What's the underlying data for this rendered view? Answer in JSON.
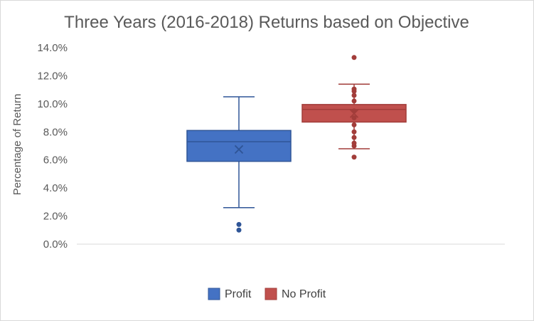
{
  "chart_data": {
    "type": "box",
    "title": "Three Years (2016-2018) Returns based on Objective",
    "ylabel": "Percentage of Return",
    "xlabel": "",
    "ylim": [
      0,
      14
    ],
    "y_ticks": [
      "0.0%",
      "2.0%",
      "4.0%",
      "6.0%",
      "8.0%",
      "10.0%",
      "12.0%",
      "14.0%"
    ],
    "grid": false,
    "legend_position": "bottom",
    "series": [
      {
        "name": "Profit",
        "color": "#4472c4",
        "border": "#2f5597",
        "whisker_low": 2.6,
        "q1": 5.9,
        "median": 7.3,
        "q3": 8.1,
        "whisker_high": 10.5,
        "mean": 6.75,
        "outliers": [
          1.0,
          1.4
        ],
        "inner_points": []
      },
      {
        "name": "No Profit",
        "color": "#c0504d",
        "border": "#a23d3a",
        "whisker_low": 6.8,
        "q1": 8.7,
        "median": 9.6,
        "q3": 9.95,
        "whisker_high": 11.4,
        "mean": 9.3,
        "outliers": [
          6.2,
          13.3
        ],
        "inner_points": [
          7.0,
          7.2,
          7.6,
          8.0,
          8.5,
          9.0,
          9.5,
          10.2,
          10.6,
          10.9,
          11.05
        ]
      }
    ]
  }
}
